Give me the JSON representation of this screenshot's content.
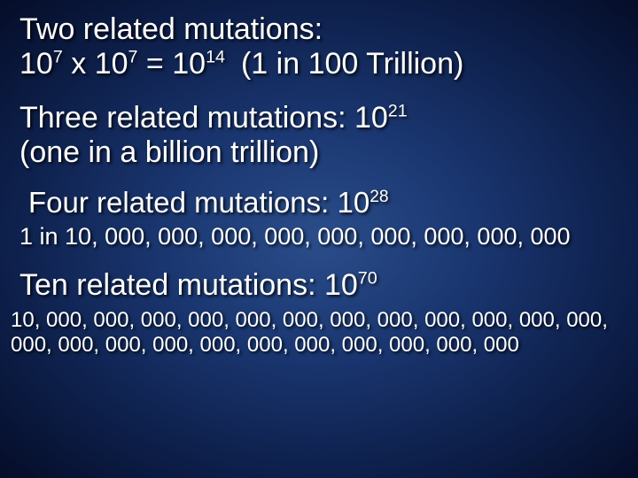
{
  "colors": {
    "text": "#ffffff",
    "bg_center": "#2a4d8a",
    "bg_mid": "#1a3670",
    "bg_outer": "#0d1f4a",
    "bg_edge": "#050d28",
    "shadow": "rgba(0,0,0,0.85)"
  },
  "typography": {
    "font_family": "Arial, Helvetica, sans-serif",
    "main_fontsize_pt": 26,
    "secondary_fontsize_pt": 20,
    "small_fontsize_pt": 18,
    "sup_scale": 0.58
  },
  "two": {
    "heading": "Two related mutations:",
    "expr_prefix": "10",
    "exp1": "7",
    "times": " x 10",
    "exp2": "7",
    "equals": " = 10",
    "exp3": "14",
    "paren": "(1 in 100 Trillion)"
  },
  "three": {
    "line1a": "Three related mutations: 10",
    "exp": "21",
    "line2": "(one in a billion trillion)"
  },
  "four": {
    "line1a": "Four related mutations: 10",
    "exp": "28",
    "long": "1 in 10, 000, 000, 000, 000, 000, 000, 000, 000, 000"
  },
  "ten": {
    "line1a": "Ten related mutations: 10",
    "exp": "70",
    "long1": "10, 000, 000, 000, 000, 000, 000, 000, 000, 000, 000, 000, 000,",
    "long2": "000, 000, 000, 000, 000, 000, 000, 000, 000, 000, 000"
  }
}
